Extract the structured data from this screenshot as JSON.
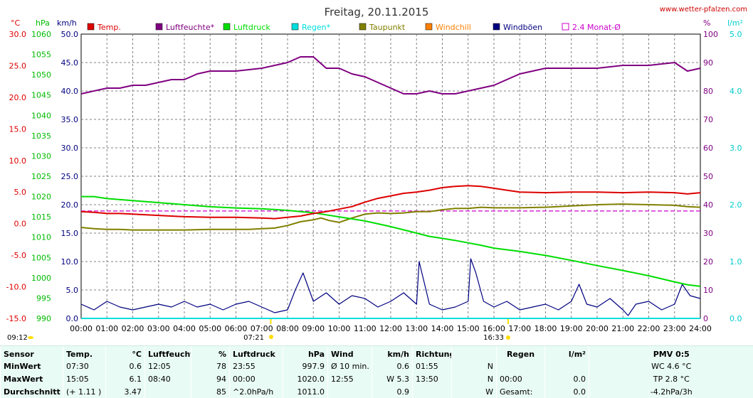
{
  "header": {
    "title": "Freitag, 20.11.2015",
    "site": "www.wetter-pfalzen.com"
  },
  "axes": {
    "temp_unit": "°C",
    "press_unit": "hPa",
    "wind_unit": "km/h",
    "hum_unit": "%",
    "rain_unit": "l/m²",
    "temp_ticks": [
      "30.0",
      "25.0",
      "20.0",
      "15.0",
      "10.0",
      "5.0",
      "0.0",
      "-5.0",
      "-10.0",
      "-15.0"
    ],
    "press_ticks": [
      "1060",
      "1055",
      "1050",
      "1045",
      "1040",
      "1035",
      "1030",
      "1025",
      "1020",
      "1015",
      "1010",
      "1005",
      "1000",
      "995",
      "990"
    ],
    "wind_ticks": [
      "50.0",
      "45.0",
      "40.0",
      "35.0",
      "30.0",
      "25.0",
      "20.0",
      "15.0",
      "10.0",
      "5.0",
      "0.0"
    ],
    "hum_ticks": [
      "100",
      "90",
      "80",
      "70",
      "60",
      "50",
      "40",
      "30",
      "20",
      "10",
      "0"
    ],
    "rain_ticks": [
      "5.0",
      "4.0",
      "3.0",
      "2.0",
      "1.0",
      "0.0"
    ],
    "time_ticks": [
      "00:00",
      "01:00",
      "02:00",
      "03:00",
      "04:00",
      "05:00",
      "06:00",
      "07:00",
      "08:00",
      "09:00",
      "10:00",
      "11:00",
      "12:00",
      "13:00",
      "14:00",
      "15:00",
      "16:00",
      "17:00",
      "18:00",
      "19:00",
      "20:00",
      "21:00",
      "22:00",
      "23:00",
      "24:00"
    ],
    "sunrise": "07:21",
    "sunset": "16:33",
    "moon": "09:12"
  },
  "colors": {
    "temp": "#dd0000",
    "humidity": "#800080",
    "pressure": "#00dd00",
    "rain": "#00dddd",
    "dewpoint": "#808000",
    "windchill": "#ff8000",
    "gust": "#000080",
    "monthavg": "#cc00cc"
  },
  "legend": [
    {
      "label": "Temp.",
      "color": "#dd0000"
    },
    {
      "label": "Luftfeuchte*",
      "color": "#800080"
    },
    {
      "label": "Luftdruck",
      "color": "#00dd00"
    },
    {
      "label": "Regen*",
      "color": "#00dddd"
    },
    {
      "label": "Taupunkt",
      "color": "#808000"
    },
    {
      "label": "Windchill",
      "color": "#ff8000"
    },
    {
      "label": "Windböen",
      "color": "#000080"
    },
    {
      "label": "2.4 Monat-Ø",
      "color": "#cc00cc"
    }
  ],
  "chart_data": {
    "type": "line",
    "title": "Freitag, 20.11.2015",
    "x_range": [
      0,
      24
    ],
    "ranges": {
      "temperature_c": [
        -15,
        30
      ],
      "pressure_hpa": [
        990,
        1060
      ],
      "wind_kmh": [
        0,
        50
      ],
      "humidity_pct": [
        0,
        100
      ],
      "rain_lm2": [
        0,
        5
      ]
    },
    "series": [
      {
        "name": "Temp.",
        "axis": "temperature_c",
        "x": [
          0,
          0.5,
          1,
          1.5,
          2,
          3,
          4,
          5,
          6,
          7,
          7.5,
          8,
          8.5,
          9,
          9.5,
          10,
          10.5,
          11,
          11.5,
          12,
          12.5,
          13,
          13.5,
          14,
          14.5,
          15,
          15.5,
          16,
          16.5,
          17,
          18,
          19,
          20,
          21,
          22,
          23,
          23.5,
          24
        ],
        "y": [
          1.9,
          1.8,
          1.6,
          1.6,
          1.5,
          1.3,
          1.1,
          1.0,
          1.0,
          0.9,
          0.8,
          1.0,
          1.2,
          1.6,
          1.9,
          2.3,
          2.7,
          3.4,
          4.0,
          4.4,
          4.8,
          5.0,
          5.3,
          5.7,
          5.9,
          6.0,
          5.9,
          5.6,
          5.3,
          5.0,
          4.9,
          5.0,
          5.0,
          4.9,
          5.0,
          4.9,
          4.7,
          4.9
        ]
      },
      {
        "name": "Luftfeuchte*",
        "axis": "humidity_pct",
        "x": [
          0,
          1,
          1.5,
          2,
          2.5,
          3,
          3.5,
          4,
          4.5,
          5,
          6,
          7,
          7.5,
          8,
          8.5,
          9,
          9.5,
          10,
          10.5,
          11,
          11.5,
          12,
          12.5,
          13,
          13.5,
          14,
          14.5,
          15,
          15.5,
          16,
          16.5,
          17,
          17.5,
          18,
          18.5,
          19,
          20,
          21,
          22,
          23,
          23.5,
          24
        ],
        "y": [
          79,
          81,
          81,
          82,
          82,
          83,
          84,
          84,
          86,
          87,
          87,
          88,
          89,
          90,
          92,
          92,
          88,
          88,
          86,
          85,
          83,
          81,
          79,
          79,
          80,
          79,
          79,
          80,
          81,
          82,
          84,
          86,
          87,
          88,
          88,
          88,
          88,
          89,
          89,
          90,
          87,
          88
        ]
      },
      {
        "name": "Luftdruck",
        "axis": "pressure_hpa",
        "x": [
          0,
          0.5,
          1,
          2,
          3,
          4,
          5,
          6,
          7,
          8,
          8.5,
          9,
          9.5,
          10,
          10.5,
          11,
          11.5,
          12,
          12.5,
          13,
          13.5,
          14,
          14.5,
          15,
          15.5,
          16,
          17,
          18,
          19,
          20,
          21,
          22,
          23,
          23.5,
          24
        ],
        "y": [
          1020.0,
          1020.0,
          1019.5,
          1019.0,
          1018.5,
          1018.0,
          1017.5,
          1017.2,
          1017.0,
          1016.6,
          1016.3,
          1016.0,
          1015.5,
          1015.0,
          1014.5,
          1014.0,
          1013.3,
          1012.6,
          1011.8,
          1011.0,
          1010.2,
          1009.7,
          1009.2,
          1008.6,
          1008.0,
          1007.3,
          1006.5,
          1005.5,
          1004.3,
          1003.0,
          1001.8,
          1000.5,
          999.0,
          998.3,
          997.9
        ]
      },
      {
        "name": "Taupunkt",
        "axis": "temperature_c",
        "x": [
          0,
          0.5,
          1,
          1.5,
          2,
          3,
          4,
          5,
          6,
          6.5,
          7,
          7.5,
          8,
          8.5,
          9,
          9.3,
          9.6,
          10,
          10.5,
          11,
          11.5,
          12,
          12.5,
          13,
          13.5,
          14,
          14.5,
          15,
          15.5,
          16,
          17,
          18,
          19,
          20,
          21,
          22,
          23,
          23.5,
          24
        ],
        "y": [
          -0.6,
          -0.8,
          -0.9,
          -0.9,
          -1.0,
          -1.0,
          -1.0,
          -0.9,
          -0.9,
          -0.9,
          -0.8,
          -0.7,
          -0.3,
          0.3,
          0.6,
          0.9,
          0.5,
          0.2,
          0.9,
          1.5,
          1.7,
          1.6,
          1.7,
          1.9,
          1.9,
          2.2,
          2.4,
          2.4,
          2.6,
          2.5,
          2.5,
          2.6,
          2.8,
          3.0,
          3.1,
          3.0,
          2.9,
          2.7,
          2.6
        ]
      },
      {
        "name": "Windböen",
        "axis": "wind_kmh",
        "x": [
          0,
          0.5,
          1,
          1.5,
          2,
          2.5,
          3,
          3.5,
          4,
          4.5,
          5,
          5.5,
          6,
          6.5,
          7,
          7.5,
          8,
          8.3,
          8.6,
          9,
          9.5,
          10,
          10.5,
          11,
          11.5,
          12,
          12.5,
          13,
          13.1,
          13.5,
          14,
          14.5,
          15,
          15.1,
          15.3,
          15.6,
          16,
          16.5,
          17,
          17.5,
          18,
          18.5,
          19,
          19.3,
          19.6,
          20,
          20.5,
          21,
          21.2,
          21.5,
          22,
          22.5,
          23,
          23.3,
          23.6,
          24
        ],
        "y": [
          2.5,
          1.5,
          3.0,
          2.0,
          1.5,
          2.0,
          2.5,
          2.0,
          3.0,
          2.0,
          2.5,
          1.5,
          2.5,
          3.0,
          2.0,
          1.0,
          1.5,
          5.0,
          8.0,
          3.0,
          4.5,
          2.5,
          4.0,
          3.5,
          2.0,
          3.0,
          4.5,
          2.5,
          10.0,
          2.5,
          1.5,
          2.0,
          3.0,
          10.5,
          8.0,
          3.0,
          2.0,
          3.0,
          1.5,
          2.0,
          2.5,
          1.5,
          3.0,
          6.0,
          2.5,
          2.0,
          3.5,
          1.5,
          0.5,
          2.5,
          3.0,
          1.5,
          2.5,
          6.0,
          4.0,
          3.5
        ]
      },
      {
        "name": "Regen*",
        "axis": "rain_lm2",
        "x": [
          0,
          24
        ],
        "y": [
          0,
          0
        ]
      },
      {
        "name": "2.4 Monat-Ø",
        "axis": "temperature_c",
        "x": [
          0,
          24
        ],
        "y": [
          2.0,
          2.0
        ]
      }
    ]
  },
  "stats": {
    "headers": {
      "sensor": "Sensor",
      "temp": "Temp.",
      "temp_unit": "°C",
      "hum": "Luftfeuchte",
      "hum_unit": "%",
      "press": "Luftdruck",
      "press_unit": "hPa",
      "wind": "Wind",
      "wind_unit": "km/h",
      "dir": "Richtung",
      "rain": "Regen",
      "rain_unit": "l/m²",
      "pmv": "PMV 0:5"
    },
    "rows": [
      {
        "label": "MinWert",
        "t_time": "07:30",
        "t_val": "0.6",
        "h_time": "12:05",
        "h_val": "78",
        "p_time": "23:55",
        "p_val": "997.9",
        "w_time": "Ø 10 min.",
        "w_val": "0.6",
        "d_time": "01:55",
        "d_val": "N",
        "r_time": "",
        "r_val": "",
        "pmv": "WC 4.6 °C"
      },
      {
        "label": "MaxWert",
        "t_time": "15:05",
        "t_val": "6.1",
        "h_time": "08:40",
        "h_val": "94",
        "p_time": "00:00",
        "p_val": "1020.0",
        "w_time": "12:55",
        "w_val": "W 5.3",
        "d_time": "13:50",
        "d_val": "N",
        "r_time": "00:00",
        "r_val": "0.0",
        "pmv": "TP 2.8 °C"
      },
      {
        "label": "Durchschnitt",
        "t_time": "(+ 1.11 )",
        "t_val": "3.47",
        "h_time": "",
        "h_val": "85",
        "p_time": "^2.0hPa/h",
        "p_val": "1011.0",
        "w_time": "",
        "w_val": "0.9",
        "d_time": "",
        "d_val": "W",
        "r_time": "Gesamt:",
        "r_val": "0.0",
        "pmv": "-4.2hPa/3h"
      }
    ]
  }
}
